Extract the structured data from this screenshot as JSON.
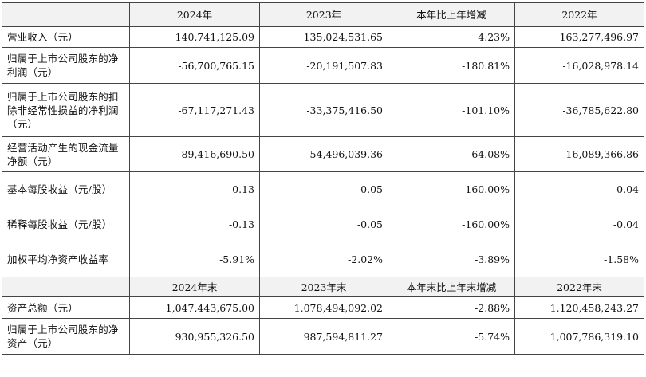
{
  "header_top": [
    "2024年",
    "2023年",
    "本年比上年增减",
    "2022年"
  ],
  "header_bottom": [
    "2024年末",
    "2023年末",
    "本年末比上年末增减",
    "2022年末"
  ],
  "rows": [
    {
      "label": "营业收入（元）",
      "v2024": "140,741,125.09",
      "v2023": "135,024,531.65",
      "change": "4.23%",
      "v2022": "163,277,496.97"
    },
    {
      "label": "归属于上市公司股东的净利润（元）",
      "v2024": "-56,700,765.15",
      "v2023": "-20,191,507.83",
      "change": "-180.81%",
      "v2022": "-16,028,978.14"
    },
    {
      "label": "归属于上市公司股东的扣除非经常性损益的净利润（元）",
      "v2024": "-67,117,271.43",
      "v2023": "-33,375,416.50",
      "change": "-101.10%",
      "v2022": "-36,785,622.80"
    },
    {
      "label": "经营活动产生的现金流量净额（元）",
      "v2024": "-89,416,690.50",
      "v2023": "-54,496,039.36",
      "change": "-64.08%",
      "v2022": "-16,089,366.86"
    },
    {
      "label": "基本每股收益（元/股）",
      "v2024": "-0.13",
      "v2023": "-0.05",
      "change": "-160.00%",
      "v2022": "-0.04"
    },
    {
      "label": "稀释每股收益（元/股）",
      "v2024": "-0.13",
      "v2023": "-0.05",
      "change": "-160.00%",
      "v2022": "-0.04"
    },
    {
      "label": "加权平均净资产收益率",
      "v2024": "-5.91%",
      "v2023": "-2.02%",
      "change": "-3.89%",
      "v2022": "-1.58%"
    }
  ],
  "rows_bottom": [
    {
      "label": "资产总额（元）",
      "v2024": "1,047,443,675.00",
      "v2023": "1,078,494,092.02",
      "change": "-2.88%",
      "v2022": "1,120,458,243.27"
    },
    {
      "label": "归属于上市公司股东的净资产（元）",
      "v2024": "930,955,326.50",
      "v2023": "987,594,811.27",
      "change": "-5.74%",
      "v2022": "1,007,786,319.10"
    }
  ]
}
